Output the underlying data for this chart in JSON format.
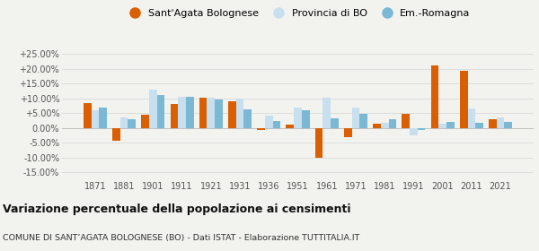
{
  "years": [
    1871,
    1881,
    1901,
    1911,
    1921,
    1931,
    1936,
    1951,
    1961,
    1971,
    1981,
    1991,
    2001,
    2011,
    2021
  ],
  "sant_agata": [
    8.5,
    -4.5,
    4.5,
    8.2,
    10.2,
    9.0,
    -0.8,
    1.2,
    -10.2,
    -3.2,
    1.5,
    4.8,
    21.2,
    19.3,
    2.9
  ],
  "prov_bo": [
    6.0,
    3.5,
    12.8,
    10.5,
    10.2,
    9.8,
    4.0,
    6.8,
    10.2,
    7.0,
    1.8,
    -2.5,
    1.5,
    6.5,
    3.5
  ],
  "em_ro": [
    7.0,
    2.8,
    11.2,
    10.5,
    9.5,
    6.2,
    2.2,
    6.0,
    3.2,
    4.8,
    3.0,
    -0.8,
    2.0,
    1.8,
    2.0
  ],
  "color_sant_agata": "#d95f02",
  "color_prov_bo": "#c8dff0",
  "color_em_romagna": "#7ab8d4",
  "title": "Variazione percentuale della popolazione ai censimenti",
  "subtitle": "COMUNE DI SANT’AGATA BOLOGNESE (BO) - Dati ISTAT - Elaborazione TUTTITALIA.IT",
  "yticks": [
    -15,
    -10,
    -5,
    0,
    5,
    10,
    15,
    20,
    25
  ],
  "ylim_min": -17.5,
  "ylim_max": 28,
  "background": "#f2f2ee",
  "grid_color": "#dddddd",
  "bar_width": 0.27
}
